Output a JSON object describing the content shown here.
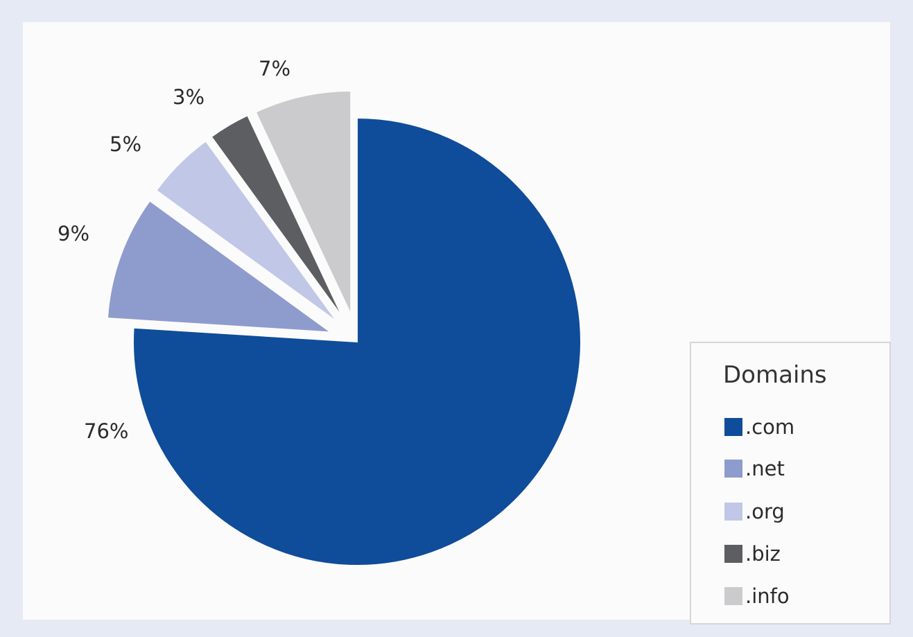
{
  "chart_data": {
    "type": "pie",
    "categories": [
      ".com",
      ".net",
      ".org",
      ".biz",
      ".info"
    ],
    "values": [
      76,
      9,
      5,
      3,
      7
    ],
    "labels": [
      "76%",
      "9%",
      "5%",
      "3%",
      "7%"
    ],
    "colors": [
      "#0f4c9a",
      "#8e9ccd",
      "#c1c7e6",
      "#5d5e62",
      "#cbcbcd"
    ],
    "exploded": [
      false,
      true,
      true,
      true,
      true
    ],
    "legend": {
      "title": "Domains",
      "position": "bottom-right"
    }
  }
}
